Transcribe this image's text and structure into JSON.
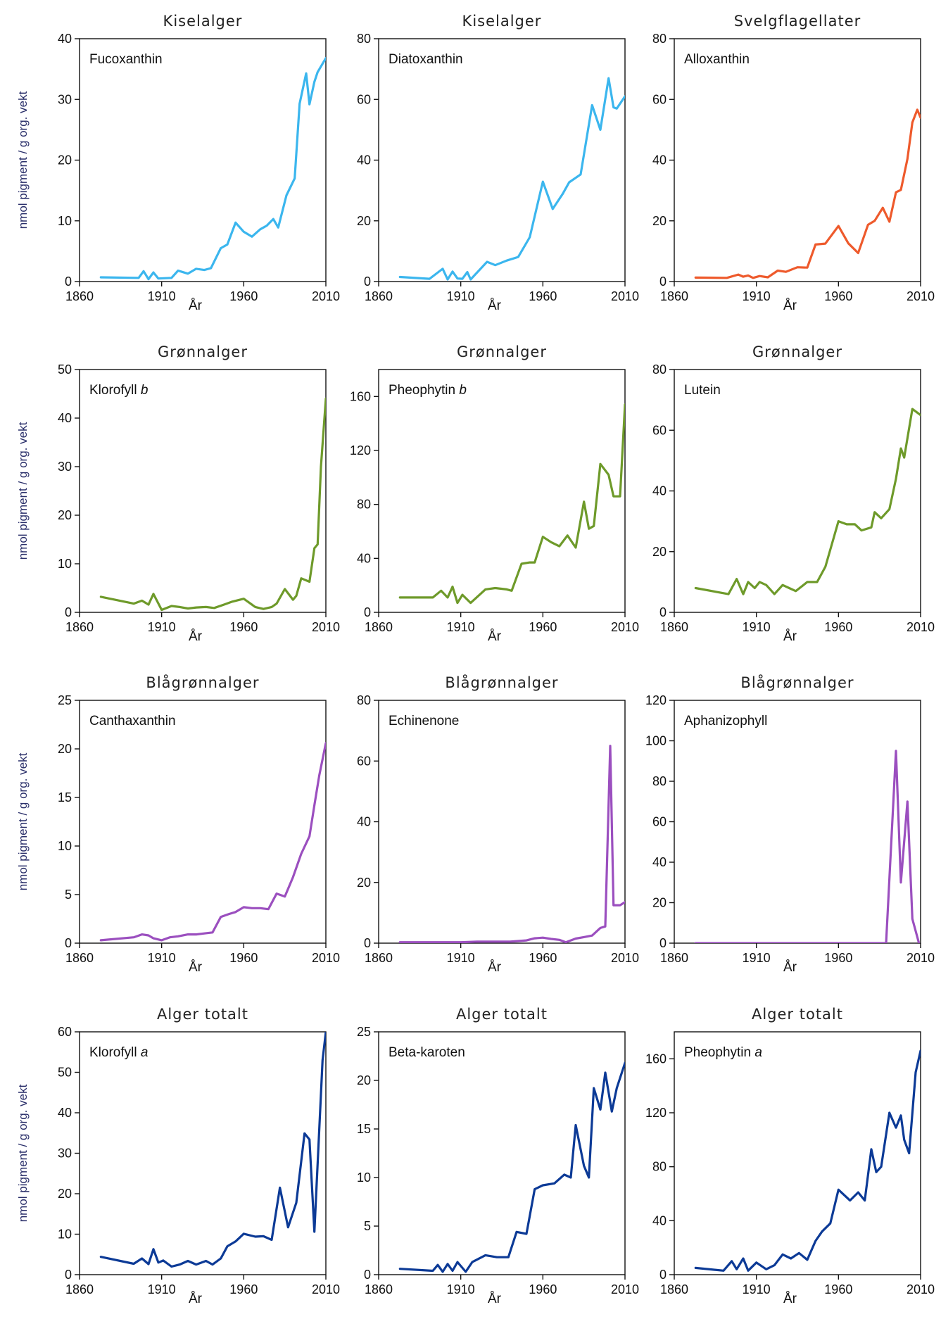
{
  "ylabel": "nmol pigment / g org. vekt",
  "xlabel": "År",
  "xticks": [
    1860,
    1910,
    1960,
    2010
  ],
  "colors": {
    "diatoms": "#3bb6ee",
    "cryptophytes": "#ee5a2c",
    "green": "#6e9a2a",
    "cyano": "#9b4fbf",
    "total": "#0c3a96"
  },
  "chart_data": [
    {
      "type": "line",
      "title": "Kiselalger",
      "series_label": "Fucoxanthin",
      "color_key": "diatoms",
      "ylim": [
        0,
        40
      ],
      "yticks": [
        0,
        10,
        20,
        30,
        40
      ],
      "x": [
        1873,
        1896,
        1899,
        1902,
        1905,
        1908,
        1916,
        1920,
        1926,
        1931,
        1936,
        1940,
        1946,
        1950,
        1955,
        1960,
        1965,
        1970,
        1974,
        1978,
        1981,
        1986,
        1991,
        1994,
        1998,
        2000,
        2003,
        2005,
        2010
      ],
      "values": [
        0.7,
        0.6,
        1.7,
        0.4,
        1.5,
        0.5,
        0.6,
        1.8,
        1.3,
        2.1,
        1.9,
        2.2,
        5.5,
        6.1,
        9.7,
        8.2,
        7.4,
        8.6,
        9.2,
        10.3,
        8.9,
        14.2,
        17.0,
        29.3,
        34.3,
        29.2,
        32.9,
        34.5,
        36.8
      ]
    },
    {
      "type": "line",
      "title": "Kiselalger",
      "series_label": "Diatoxanthin",
      "color_key": "diatoms",
      "ylim": [
        0,
        80
      ],
      "yticks": [
        0,
        20,
        40,
        60,
        80
      ],
      "x": [
        1873,
        1891,
        1899,
        1902,
        1905,
        1908,
        1911,
        1914,
        1916,
        1926,
        1931,
        1938,
        1945,
        1952,
        1960,
        1966,
        1972,
        1976,
        1983,
        1990,
        1995,
        2000,
        2003,
        2005,
        2010
      ],
      "values": [
        1.5,
        0.9,
        4.2,
        0.7,
        3.3,
        1.0,
        0.9,
        3.1,
        0.7,
        6.5,
        5.4,
        6.9,
        8.1,
        14.6,
        32.9,
        23.9,
        28.8,
        32.7,
        35.3,
        58.1,
        50.0,
        67.0,
        57.4,
        57.0,
        61.0
      ]
    },
    {
      "type": "line",
      "title": "Svelgflagellater",
      "series_label": "Alloxanthin",
      "color_key": "cryptophytes",
      "ylim": [
        0,
        80
      ],
      "yticks": [
        0,
        20,
        40,
        60,
        80
      ],
      "x": [
        1873,
        1892,
        1899,
        1902,
        1905,
        1908,
        1912,
        1917,
        1923,
        1928,
        1935,
        1941,
        1946,
        1952,
        1960,
        1966,
        1972,
        1978,
        1982,
        1987,
        1991,
        1995,
        1998,
        2002,
        2005,
        2008,
        2010
      ],
      "values": [
        1.3,
        1.2,
        2.3,
        1.6,
        2.0,
        1.2,
        1.8,
        1.4,
        3.6,
        3.2,
        4.7,
        4.6,
        12.2,
        12.5,
        18.3,
        12.6,
        9.4,
        18.7,
        20.0,
        24.3,
        19.7,
        29.4,
        30.2,
        40.4,
        52.4,
        56.6,
        54.0
      ]
    },
    {
      "type": "line",
      "title": "Grønnalger",
      "series_label": "Klorofyll b",
      "color_key": "green",
      "ylim": [
        0,
        50
      ],
      "yticks": [
        0,
        10,
        20,
        30,
        40,
        50
      ],
      "x": [
        1873,
        1893,
        1898,
        1902,
        1905,
        1910,
        1916,
        1921,
        1926,
        1931,
        1937,
        1942,
        1948,
        1953,
        1960,
        1967,
        1972,
        1977,
        1980,
        1985,
        1990,
        1992,
        1995,
        2000,
        2003,
        2005,
        2007,
        2010
      ],
      "values": [
        3.2,
        1.8,
        2.4,
        1.6,
        3.8,
        0.5,
        1.3,
        1.1,
        0.8,
        1.0,
        1.1,
        0.9,
        1.6,
        2.2,
        2.8,
        1.1,
        0.7,
        1.1,
        1.8,
        4.8,
        2.6,
        3.4,
        7.0,
        6.3,
        13.2,
        14.0,
        30.0,
        44.0
      ]
    },
    {
      "type": "line",
      "title": "Grønnalger",
      "series_label": "Pheophytin b",
      "color_key": "green",
      "ylim": [
        0,
        180
      ],
      "yticks": [
        0,
        40,
        80,
        120,
        160
      ],
      "x": [
        1873,
        1893,
        1898,
        1902,
        1905,
        1908,
        1911,
        1916,
        1925,
        1931,
        1938,
        1941,
        1947,
        1952,
        1955,
        1960,
        1965,
        1970,
        1975,
        1980,
        1985,
        1988,
        1991,
        1995,
        2000,
        2003,
        2007,
        2010
      ],
      "values": [
        11,
        11,
        16,
        11,
        19,
        7,
        13,
        7,
        17,
        18,
        17,
        16,
        36,
        37,
        37,
        56,
        52,
        49,
        57,
        48,
        82,
        62,
        64,
        110,
        102,
        86,
        86,
        154
      ]
    },
    {
      "type": "line",
      "title": "Grønnalger",
      "series_label": "Lutein",
      "color_key": "green",
      "ylim": [
        0,
        80
      ],
      "yticks": [
        0,
        20,
        40,
        60,
        80
      ],
      "x": [
        1873,
        1893,
        1898,
        1902,
        1905,
        1909,
        1912,
        1916,
        1921,
        1926,
        1930,
        1934,
        1941,
        1947,
        1952,
        1960,
        1965,
        1970,
        1974,
        1980,
        1982,
        1986,
        1991,
        1995,
        1998,
        2000,
        2005,
        2010
      ],
      "values": [
        8,
        6,
        11,
        6,
        10,
        8,
        10,
        9,
        6,
        9,
        8,
        7,
        10,
        10,
        15,
        30,
        29,
        29,
        27,
        28,
        33,
        31,
        34,
        44,
        54,
        51,
        67,
        65
      ]
    },
    {
      "type": "line",
      "title": "Blågrønnalger",
      "series_label": "Canthaxanthin",
      "color_key": "cyano",
      "ylim": [
        0,
        25
      ],
      "yticks": [
        0,
        5,
        10,
        15,
        20,
        25
      ],
      "x": [
        1873,
        1893,
        1898,
        1902,
        1905,
        1910,
        1915,
        1920,
        1926,
        1931,
        1936,
        1941,
        1946,
        1951,
        1955,
        1960,
        1965,
        1970,
        1975,
        1980,
        1985,
        1990,
        1995,
        2000,
        2003,
        2006,
        2010
      ],
      "values": [
        0.3,
        0.6,
        0.9,
        0.8,
        0.5,
        0.3,
        0.6,
        0.7,
        0.9,
        0.9,
        1.0,
        1.1,
        2.7,
        3.0,
        3.2,
        3.7,
        3.6,
        3.6,
        3.5,
        5.1,
        4.8,
        6.8,
        9.2,
        11.0,
        14.2,
        17.3,
        20.6
      ]
    },
    {
      "type": "line",
      "title": "Blågrønnalger",
      "series_label": "Echinenone",
      "color_key": "cyano",
      "ylim": [
        0,
        80
      ],
      "yticks": [
        0,
        20,
        40,
        60,
        80
      ],
      "x": [
        1873,
        1900,
        1910,
        1920,
        1930,
        1940,
        1945,
        1950,
        1955,
        1960,
        1965,
        1970,
        1974,
        1980,
        1985,
        1990,
        1995,
        1998,
        2001,
        2003,
        2007,
        2010
      ],
      "values": [
        0.3,
        0.3,
        0.3,
        0.5,
        0.5,
        0.5,
        0.7,
        0.9,
        1.6,
        1.8,
        1.4,
        1.1,
        0.3,
        1.5,
        2.0,
        2.5,
        5.0,
        5.5,
        65.0,
        12.5,
        12.5,
        13.5
      ]
    },
    {
      "type": "line",
      "title": "Blågrønnalger",
      "series_label": "Aphanizophyll",
      "color_key": "cyano",
      "ylim": [
        0,
        120
      ],
      "yticks": [
        0,
        20,
        40,
        60,
        80,
        100,
        120
      ],
      "x": [
        1873,
        1900,
        1920,
        1940,
        1960,
        1980,
        1989,
        1995,
        1998,
        2002,
        2005,
        2009
      ],
      "values": [
        0,
        0,
        0,
        0,
        0,
        0,
        0,
        95,
        30,
        70,
        12,
        0
      ]
    },
    {
      "type": "line",
      "title": "Alger totalt",
      "series_label": "Klorofyll a",
      "color_key": "total",
      "ylim": [
        0,
        60
      ],
      "yticks": [
        0,
        10,
        20,
        30,
        40,
        50,
        60
      ],
      "x": [
        1873,
        1893,
        1898,
        1902,
        1905,
        1908,
        1911,
        1916,
        1921,
        1926,
        1931,
        1937,
        1941,
        1946,
        1950,
        1955,
        1960,
        1967,
        1972,
        1977,
        1982,
        1987,
        1992,
        1997,
        2000,
        2003,
        2008,
        2010
      ],
      "values": [
        4.4,
        2.7,
        4.0,
        2.6,
        6.3,
        3.0,
        3.5,
        2.0,
        2.5,
        3.4,
        2.5,
        3.4,
        2.5,
        4.0,
        7.0,
        8.2,
        10.1,
        9.4,
        9.5,
        8.6,
        21.5,
        11.7,
        17.8,
        34.9,
        33.4,
        10.6,
        53.0,
        60.0
      ]
    },
    {
      "type": "line",
      "title": "Alger totalt",
      "series_label": "Beta-karoten",
      "color_key": "total",
      "ylim": [
        0,
        25
      ],
      "yticks": [
        0,
        5,
        10,
        15,
        20,
        25
      ],
      "x": [
        1873,
        1893,
        1896,
        1899,
        1902,
        1905,
        1908,
        1913,
        1917,
        1925,
        1932,
        1939,
        1944,
        1950,
        1955,
        1960,
        1967,
        1973,
        1977,
        1980,
        1985,
        1988,
        1991,
        1995,
        1998,
        2002,
        2005,
        2010
      ],
      "values": [
        0.6,
        0.4,
        1.0,
        0.3,
        1.1,
        0.4,
        1.3,
        0.3,
        1.3,
        2.0,
        1.8,
        1.8,
        4.4,
        4.2,
        8.8,
        9.2,
        9.4,
        10.3,
        10.0,
        15.4,
        11.2,
        10.0,
        19.2,
        17.0,
        20.8,
        16.8,
        19.2,
        21.8
      ]
    },
    {
      "type": "line",
      "title": "Alger totalt",
      "series_label": "Pheophytin a",
      "color_key": "total",
      "ylim": [
        0,
        180
      ],
      "yticks": [
        0,
        40,
        80,
        120,
        160
      ],
      "x": [
        1873,
        1890,
        1895,
        1898,
        1902,
        1905,
        1910,
        1916,
        1921,
        1926,
        1931,
        1936,
        1941,
        1946,
        1950,
        1955,
        1960,
        1967,
        1972,
        1976,
        1980,
        1983,
        1986,
        1991,
        1995,
        1998,
        2000,
        2003,
        2007,
        2010
      ],
      "values": [
        5,
        3,
        10,
        4,
        12,
        3,
        9,
        4,
        7,
        15,
        12,
        16,
        11,
        25,
        32,
        38,
        63,
        55,
        61,
        55,
        93,
        76,
        80,
        120,
        109,
        118,
        100,
        90,
        150,
        166
      ]
    }
  ]
}
